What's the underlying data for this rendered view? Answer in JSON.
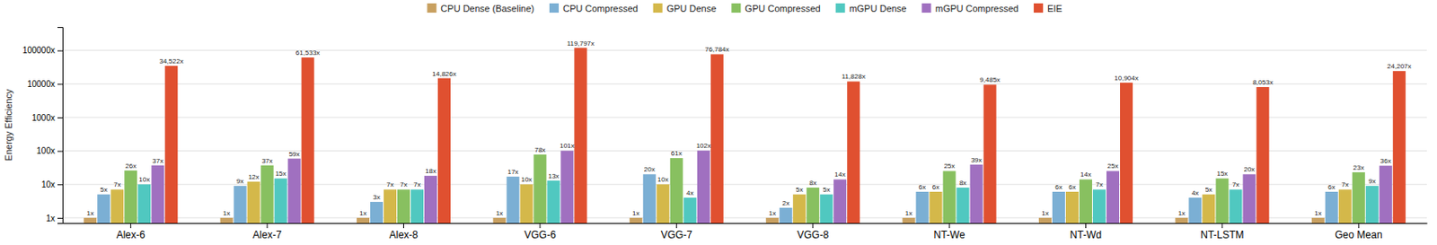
{
  "chart_data": {
    "type": "bar",
    "ylabel": "Energy Efficiency",
    "categories": [
      "Alex-6",
      "Alex-7",
      "Alex-8",
      "VGG-6",
      "VGG-7",
      "VGG-8",
      "NT-We",
      "NT-Wd",
      "NT-LSTM",
      "Geo Mean"
    ],
    "series": [
      {
        "name": "CPU Dense (Baseline)",
        "color": "#c8a060",
        "values": [
          1,
          1,
          1,
          1,
          1,
          1,
          1,
          1,
          1,
          1
        ],
        "value_labels": [
          "1x",
          "1x",
          "1x",
          "1x",
          "1x",
          "1x",
          "1x",
          "1x",
          "1x",
          "1x"
        ]
      },
      {
        "name": "CPU Compressed",
        "color": "#7bafd4",
        "values": [
          5,
          9,
          3,
          17,
          20,
          2,
          6,
          6,
          4,
          6
        ],
        "value_labels": [
          "5x",
          "9x",
          "3x",
          "17x",
          "20x",
          "2x",
          "6x",
          "6x",
          "4x",
          "6x"
        ]
      },
      {
        "name": "GPU Dense",
        "color": "#d4b84a",
        "values": [
          7,
          12,
          7,
          10,
          10,
          5,
          6,
          6,
          5,
          7
        ],
        "value_labels": [
          "7x",
          "12x",
          "7x",
          "10x",
          "10x",
          "5x",
          "6x",
          "6x",
          "5x",
          "7x"
        ]
      },
      {
        "name": "GPU Compressed",
        "color": "#88c060",
        "values": [
          26,
          37,
          7,
          78,
          61,
          8,
          25,
          14,
          15,
          23
        ],
        "value_labels": [
          "26x",
          "37x",
          "7x",
          "78x",
          "61x",
          "8x",
          "25x",
          "14x",
          "15x",
          "23x"
        ]
      },
      {
        "name": "mGPU Dense",
        "color": "#50c8c0",
        "values": [
          10,
          15,
          7,
          13,
          4,
          5,
          8,
          7,
          7,
          9
        ],
        "value_labels": [
          "10x",
          "15x",
          "7x",
          "13x",
          "4x",
          "5x",
          "8x",
          "7x",
          "7x",
          "9x"
        ]
      },
      {
        "name": "mGPU Compressed",
        "color": "#a070c0",
        "values": [
          37,
          59,
          18,
          101,
          102,
          14,
          39,
          25,
          20,
          36
        ],
        "value_labels": [
          "37x",
          "59x",
          "18x",
          "101x",
          "102x",
          "14x",
          "39x",
          "25x",
          "20x",
          "36x"
        ]
      },
      {
        "name": "EIE",
        "color": "#e05030",
        "values": [
          34522,
          61533,
          14826,
          119797,
          76784,
          11828,
          9485,
          10904,
          8053,
          24207
        ],
        "value_labels": [
          "34,522x",
          "61,533x",
          "14,826x",
          "119,797x",
          "76,784x",
          "11,828x",
          "9,485x",
          "10,904x",
          "8,053x",
          "24,207x"
        ]
      }
    ],
    "ylim": [
      0.7,
      500000
    ],
    "yticks": [
      {
        "value": 1,
        "label": "1x"
      },
      {
        "value": 10,
        "label": "10x"
      },
      {
        "value": 100,
        "label": "100x"
      },
      {
        "value": 1000,
        "label": "1000x"
      },
      {
        "value": 10000,
        "label": "10000x"
      },
      {
        "value": 100000,
        "label": "100000x"
      }
    ],
    "log": "y",
    "grid": true,
    "legend": "top",
    "data_labels": true
  }
}
